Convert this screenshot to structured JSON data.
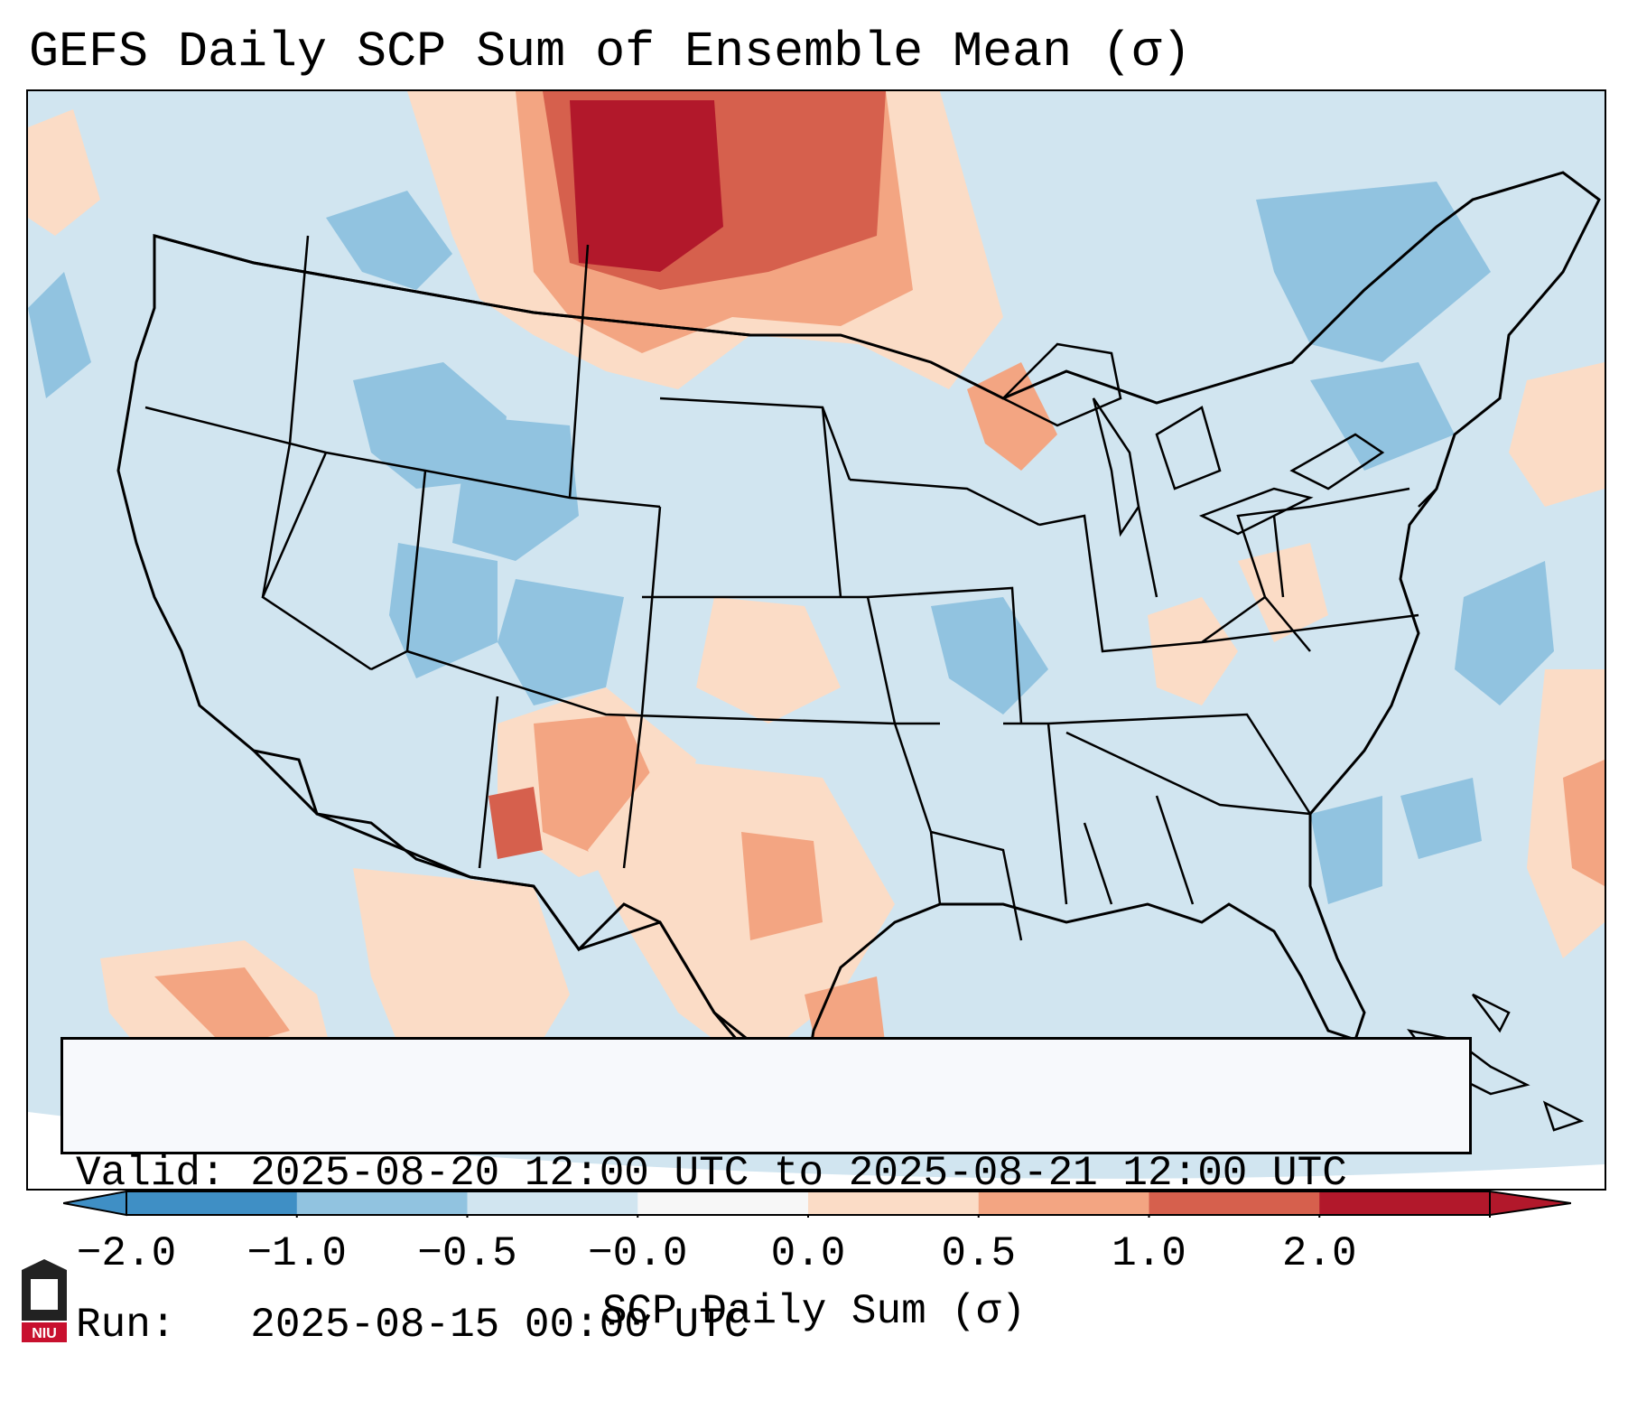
{
  "title": "GEFS Daily SCP Sum of Ensemble Mean (σ)",
  "info": {
    "valid": "Valid: 2025-08-20 12:00 UTC to 2025-08-21 12:00 UTC",
    "run": "Run:   2025-08-15 00:00 UTC"
  },
  "colorbar": {
    "label": "SCP Daily Sum (σ)",
    "ticks": [
      "−2.0",
      "−1.0",
      "−0.5",
      "−0.0",
      "0.0",
      "0.5",
      "1.0",
      "2.0"
    ],
    "colors": [
      "#3f8fc5",
      "#91c3e0",
      "#d1e5f0",
      "#f7f7f7",
      "#fbdcc6",
      "#f3a582",
      "#d6604d",
      "#b2182b"
    ]
  },
  "map": {
    "background_color": "#d1e5f0",
    "region": "Contiguous United States"
  },
  "logo": {
    "text": "NIU"
  }
}
